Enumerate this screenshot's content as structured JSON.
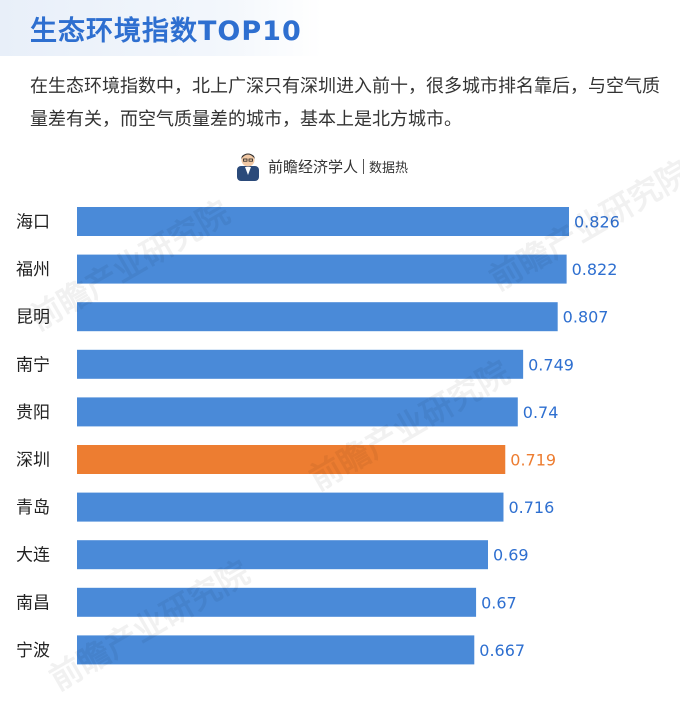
{
  "header": {
    "title": "生态环境指数TOP10",
    "description": "在生态环境指数中，北上广深只有深圳进入前十，很多城市排名靠后，与空气质量差有关，而空气质量差的城市，基本上是北方城市。"
  },
  "byline": {
    "brand": "前瞻经济学人",
    "sub": "数据热"
  },
  "watermark": {
    "text": "前瞻产业研究院"
  },
  "colors": {
    "bar": "#4a8ad8",
    "highlight": "#ed7d31",
    "label": "#2e6fd0",
    "highlight_label": "#ed7d31",
    "title": "#2e6fd0"
  },
  "chart_data": {
    "type": "bar",
    "orientation": "horizontal",
    "categories": [
      "海口",
      "福州",
      "昆明",
      "南宁",
      "贵阳",
      "深圳",
      "青岛",
      "大连",
      "南昌",
      "宁波"
    ],
    "values": [
      0.826,
      0.822,
      0.807,
      0.749,
      0.74,
      0.719,
      0.716,
      0.69,
      0.67,
      0.667
    ],
    "value_labels": [
      "0.826",
      "0.822",
      "0.807",
      "0.749",
      "0.74",
      "0.719",
      "0.716",
      "0.69",
      "0.67",
      "0.667"
    ],
    "highlight_category": "深圳",
    "xlim": [
      0,
      0.826
    ],
    "grid": false,
    "legend": "none"
  }
}
